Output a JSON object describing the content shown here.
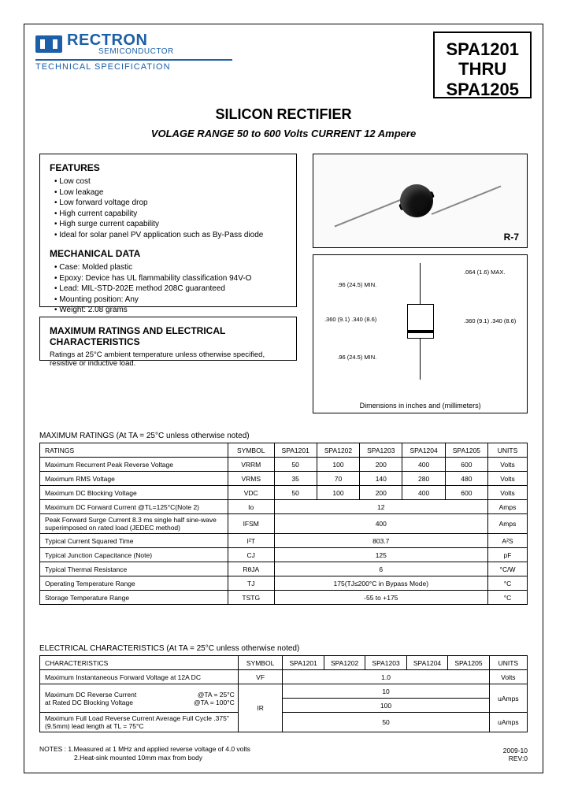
{
  "logo": {
    "name": "RECTRON",
    "sub1": "SEMICONDUCTOR",
    "sub2": "TECHNICAL SPECIFICATION",
    "brand_color": "#1b5fa8"
  },
  "partbox": {
    "line1": "SPA1201",
    "line2": "THRU",
    "line3": "SPA1205"
  },
  "title": {
    "main": "SILICON RECTIFIER",
    "sub": "VOLAGE RANGE 50 to 600 Volts CURRENT 12 Ampere"
  },
  "features": {
    "heading": "FEATURES",
    "items": [
      "Low cost",
      "Low leakage",
      "Low forward voltage drop",
      "High current capability",
      "High surge current capability",
      "Ideal for solar panel PV application such as By-Pass diode"
    ]
  },
  "mechanical": {
    "heading": "MECHANICAL DATA",
    "items": [
      "Case: Molded plastic",
      "Epoxy: Device has UL flammability classification 94V-O",
      "Lead: MIL-STD-202E method 208C guaranteed",
      "Mounting position: Any",
      "Weight: 2.08 grams"
    ]
  },
  "maxratings_box": {
    "heading": "MAXIMUM RATINGS AND ELECTRICAL CHARACTERISTICS",
    "text": "Ratings at 25°C ambient temperature unless otherwise specified, resistive or inductive load."
  },
  "package": {
    "label": "R-7",
    "dim_caption": "Dimensions in inches and (millimeters)",
    "dims": {
      "l1": ".96 (24.5)\nMIN.",
      "l2": ".360 (9.1)\n.340 (8.6)",
      "l3": ".96 (24.5)\nMIN.",
      "r1": ".064 (1.6)\nMAX.",
      "r2": ".360 (9.1)\n.340 (8.6)"
    }
  },
  "ratings_table": {
    "title": "MAXIMUM RATINGS (At TA = 25°C unless otherwise noted)",
    "header": [
      "RATINGS",
      "SYMBOL",
      "SPA1201",
      "SPA1202",
      "SPA1203",
      "SPA1204",
      "SPA1205",
      "UNITS"
    ],
    "rows": [
      {
        "r": "Maximum Recurrent Peak Reverse Voltage",
        "sym": "VRRM",
        "v": [
          "50",
          "100",
          "200",
          "400",
          "600"
        ],
        "u": "Volts"
      },
      {
        "r": "Maximum RMS Voltage",
        "sym": "VRMS",
        "v": [
          "35",
          "70",
          "140",
          "280",
          "480"
        ],
        "u": "Volts"
      },
      {
        "r": "Maximum DC Blocking Voltage",
        "sym": "VDC",
        "v": [
          "50",
          "100",
          "200",
          "400",
          "600"
        ],
        "u": "Volts"
      },
      {
        "r": "Maximum DC Forward Current @TL=125°C(Note 2)",
        "sym": "Io",
        "span": "12",
        "u": "Amps"
      },
      {
        "r": "Peak Forward Surge Current 8.3 ms single half sine-wave superimposed on rated load (JEDEC method)",
        "sym": "IFSM",
        "span": "400",
        "u": "Amps"
      },
      {
        "r": "Typical Current Squared Time",
        "sym": "I²T",
        "span": "803.7",
        "u": "A²S"
      },
      {
        "r": "Typical Junction Capacitance (Note)",
        "sym": "CJ",
        "span": "125",
        "u": "pF"
      },
      {
        "r": "Typical Thermal Resistance",
        "sym": "RθJA",
        "span": "6",
        "u": "°C/W"
      },
      {
        "r": "Operating Temperature Range",
        "sym": "TJ",
        "span": "175(TJ≤200°C in Bypass Mode)",
        "u": "°C"
      },
      {
        "r": "Storage Temperature Range",
        "sym": "TSTG",
        "span": "-55 to +175",
        "u": "°C"
      }
    ]
  },
  "elec_table": {
    "title": "ELECTRICAL CHARACTERISTICS (At TA = 25°C unless otherwise noted)",
    "header": [
      "CHARACTERISTICS",
      "SYMBOL",
      "SPA1201",
      "SPA1202",
      "SPA1203",
      "SPA1204",
      "SPA1205",
      "UNITS"
    ],
    "rows": [
      {
        "r": "Maximum Instantaneous Forward Voltage at 12A DC",
        "sym": "VF",
        "span": "1.0",
        "u": "Volts"
      },
      {
        "r": "Maximum DC Reverse Current at Rated DC Blocking Voltage",
        "cond1": "@TA = 25°C",
        "cond2": "@TA = 100°C",
        "sym": "IR",
        "v1": "10",
        "v2": "100",
        "u": "uAmps"
      },
      {
        "r": "Maximum Full Load Reverse Current Average Full Cycle .375\" (9.5mm) lead length at TL = 75°C",
        "sym": "",
        "span": "50",
        "u": "uAmps"
      }
    ]
  },
  "notes": {
    "n1": "NOTES : 1.Measured at 1 MHz and applied reverse voltage of 4.0 volts",
    "n2": "2.Heat-sink mounted 10mm max from body"
  },
  "rev": {
    "date": "2009-10",
    "rev": "REV:0"
  }
}
